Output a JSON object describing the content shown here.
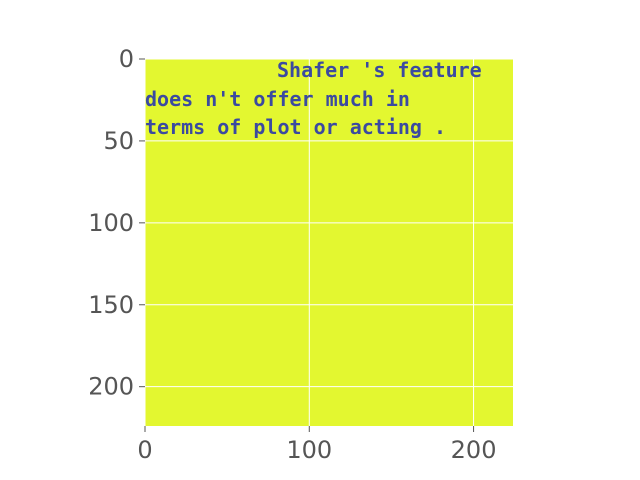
{
  "chart_data": {
    "type": "heatmap",
    "title": "",
    "xlabel": "",
    "ylabel": "",
    "xlim": [
      0,
      224
    ],
    "ylim": [
      224,
      0
    ],
    "x_ticks": [
      0,
      100,
      200
    ],
    "y_ticks": [
      0,
      50,
      100,
      150,
      200
    ],
    "x_tick_labels": [
      "0",
      "100",
      "200"
    ],
    "y_tick_labels": [
      "0",
      "50",
      "100",
      "150",
      "200"
    ],
    "grid": true,
    "background_color": "#e3f730",
    "grid_color": "#ffffff",
    "text_color": "#3b4aa0",
    "image_text_lines": [
      "Shafer 's feature",
      "does n't offer much in",
      "terms of plot or acting ."
    ]
  }
}
